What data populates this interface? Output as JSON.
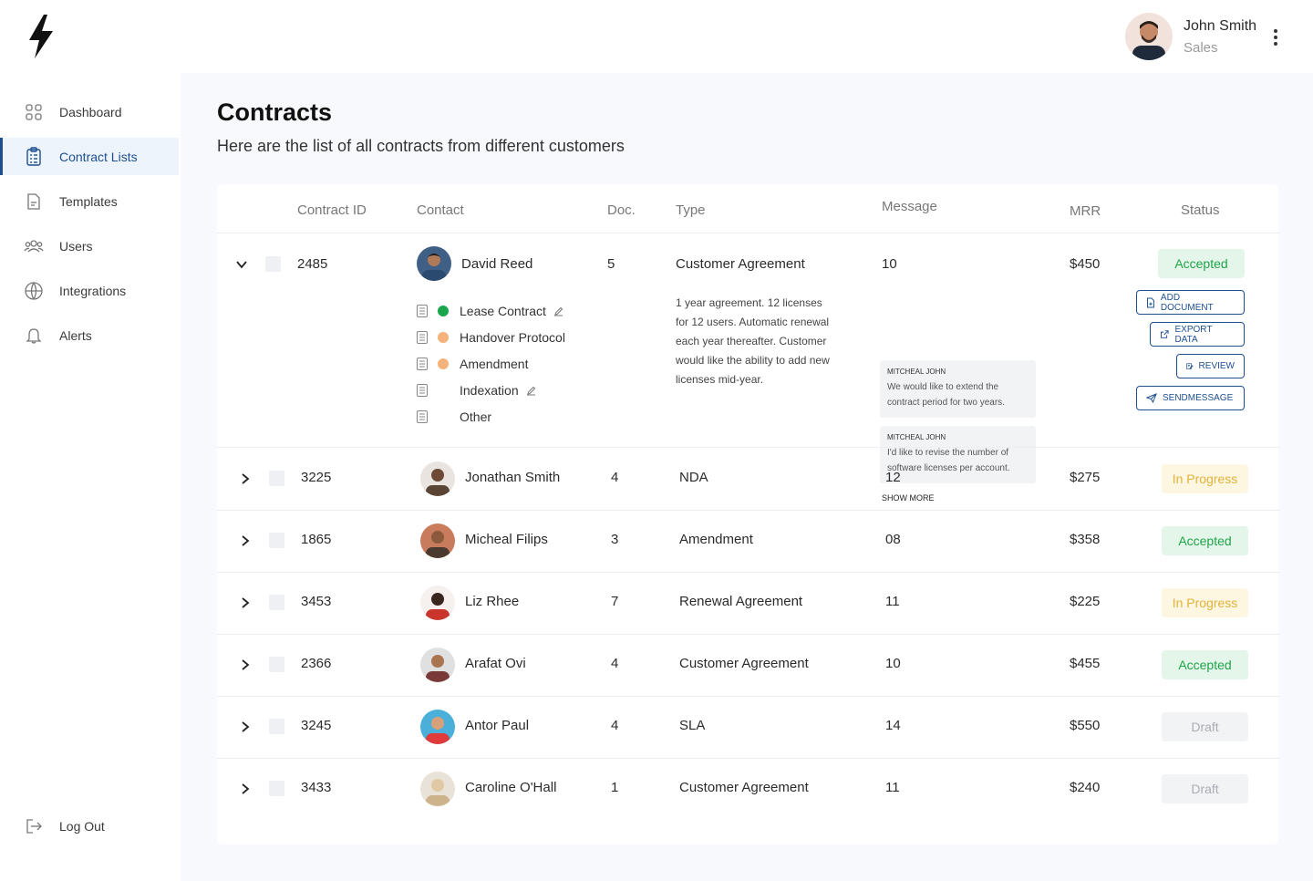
{
  "user": {
    "name": "John Smith",
    "role": "Sales"
  },
  "sidebar": {
    "items": [
      {
        "label": "Dashboard",
        "icon": "grid-icon"
      },
      {
        "label": "Contract Lists",
        "icon": "clipboard-list-icon",
        "active": true
      },
      {
        "label": "Templates",
        "icon": "document-icon"
      },
      {
        "label": "Users",
        "icon": "users-icon"
      },
      {
        "label": "Integrations",
        "icon": "globe-icon"
      },
      {
        "label": "Alerts",
        "icon": "bell-icon"
      }
    ],
    "logout": "Log Out"
  },
  "page": {
    "title": "Contracts",
    "subtitle": "Here are the list of all contracts from different customers"
  },
  "table": {
    "headers": {
      "contract_id": "Contract ID",
      "contact": "Contact",
      "doc": "Doc.",
      "type": "Type",
      "message": "Message",
      "mrr": "MRR",
      "status": "Status"
    },
    "expanded": {
      "id": "2485",
      "contact": "David Reed",
      "doc": "5",
      "type": "Customer Agreement",
      "message": "10",
      "mrr": "$450",
      "status": "Accepted",
      "documents": [
        {
          "label": "Lease Contract",
          "dot": "#1aa64a",
          "editable": true
        },
        {
          "label": "Handover Protocol",
          "dot": "#f5b27a",
          "editable": false
        },
        {
          "label": "Amendment",
          "dot": "#f5b27a",
          "editable": false
        },
        {
          "label": "Indexation",
          "dot": "",
          "editable": true
        },
        {
          "label": "Other",
          "dot": "",
          "editable": false
        }
      ],
      "description": "1 year agreement. 12 licenses for 12 users. Automatic renewal each year thereafter. Customer would like the ability to add new licenses mid-year.",
      "messages": [
        {
          "author": "MITCHEAL JOHN",
          "text": "We would like to extend the contract period for two years."
        },
        {
          "author": "MITCHEAL JOHN",
          "text": "I'd like to revise the number of software licenses per account."
        }
      ],
      "show_more": "SHOW MORE",
      "actions": [
        "ADD DOCUMENT",
        "EXPORT DATA",
        "REVIEW",
        "SENDMESSAGE"
      ]
    },
    "rows": [
      {
        "id": "3225",
        "contact": "Jonathan Smith",
        "doc": "4",
        "type": "NDA",
        "message": "12",
        "mrr": "$275",
        "status": "In Progress",
        "status_kind": "progress"
      },
      {
        "id": "1865",
        "contact": "Micheal Filips",
        "doc": "3",
        "type": "Amendment",
        "message": "08",
        "mrr": "$358",
        "status": "Accepted",
        "status_kind": "accepted"
      },
      {
        "id": "3453",
        "contact": "Liz Rhee",
        "doc": "7",
        "type": "Renewal Agreement",
        "message": "11",
        "mrr": "$225",
        "status": "In Progress",
        "status_kind": "progress"
      },
      {
        "id": "2366",
        "contact": "Arafat Ovi",
        "doc": "4",
        "type": "Customer Agreement",
        "message": "10",
        "mrr": "$455",
        "status": "Accepted",
        "status_kind": "accepted"
      },
      {
        "id": "3245",
        "contact": "Antor Paul",
        "doc": "4",
        "type": "SLA",
        "message": "14",
        "mrr": "$550",
        "status": "Draft",
        "status_kind": "draft"
      },
      {
        "id": "3433",
        "contact": "Caroline O'Hall",
        "doc": "1",
        "type": "Customer Agreement",
        "message": "11",
        "mrr": "$240",
        "status": "Draft",
        "status_kind": "draft"
      }
    ]
  },
  "colors": {
    "accent": "#1d4f91",
    "accepted": "#21a34a",
    "progress": "#e2b33b",
    "draft": "#a9adb3"
  }
}
